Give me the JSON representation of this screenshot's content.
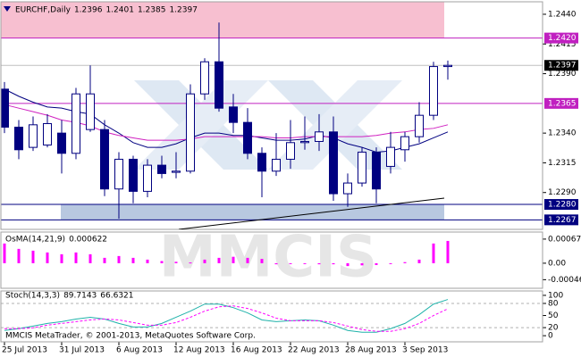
{
  "chart_data": [
    {
      "type": "candlestick",
      "title": "EURCHF,Daily",
      "header_values": [
        1.2396,
        1.2401,
        1.2385,
        1.2397
      ],
      "categories": [
        "25 Jul 2013",
        null,
        null,
        null,
        "31 Jul 2013",
        null,
        null,
        null,
        "6 Aug 2013",
        null,
        null,
        null,
        "12 Aug 2013",
        null,
        null,
        null,
        "16 Aug 2013",
        null,
        null,
        null,
        "22 Aug 2013",
        null,
        null,
        null,
        "28 Aug 2013",
        null,
        null,
        null,
        "3 Sep 2013",
        null,
        null,
        null
      ],
      "open": [
        1.2377,
        1.2345,
        1.2328,
        1.233,
        1.234,
        1.2323,
        1.2343,
        1.2343,
        1.2293,
        1.2318,
        1.2291,
        1.2313,
        1.2307,
        1.2308,
        1.2373,
        1.24,
        1.2362,
        1.2349,
        1.2323,
        1.2308,
        1.2318,
        1.2332,
        1.2333,
        1.2341,
        1.2289,
        1.2298,
        1.2324,
        1.2312,
        1.2326,
        1.2337,
        1.2355,
        1.2396
      ],
      "high": [
        1.2383,
        1.2351,
        1.2354,
        1.2356,
        1.2351,
        1.2378,
        1.2397,
        1.2351,
        1.2324,
        1.2321,
        1.2318,
        1.2321,
        1.2324,
        1.2381,
        1.2403,
        1.2433,
        1.2373,
        1.2361,
        1.2328,
        1.234,
        1.2351,
        1.2354,
        1.2356,
        1.2354,
        1.2306,
        1.2328,
        1.2328,
        1.2341,
        1.2341,
        1.2366,
        1.24,
        1.2401
      ],
      "low": [
        1.234,
        1.2318,
        1.2325,
        1.2328,
        1.2306,
        1.2318,
        1.2341,
        1.2287,
        1.2268,
        1.2281,
        1.2286,
        1.2302,
        1.2302,
        1.2306,
        1.2368,
        1.2358,
        1.234,
        1.2318,
        1.2286,
        1.2304,
        1.231,
        1.2326,
        1.2325,
        1.2283,
        1.2278,
        1.2295,
        1.2281,
        1.2306,
        1.2316,
        1.2332,
        1.2351,
        1.2385
      ],
      "close": [
        1.2345,
        1.2326,
        1.2347,
        1.2348,
        1.2323,
        1.2373,
        1.2373,
        1.2293,
        1.2318,
        1.2291,
        1.2313,
        1.2306,
        1.2308,
        1.2373,
        1.24,
        1.2361,
        1.2349,
        1.2323,
        1.2308,
        1.2318,
        1.2332,
        1.2333,
        1.2341,
        1.2289,
        1.2298,
        1.2324,
        1.2293,
        1.2328,
        1.2337,
        1.2355,
        1.2396,
        1.2397
      ],
      "up_color": "#ffffff",
      "down_color": "#000080",
      "wick_color": "#000080",
      "lines": [
        {
          "color": "#000080",
          "values": [
            1.2377,
            1.2371,
            1.2366,
            1.2362,
            1.2361,
            1.2358,
            1.2356,
            1.2347,
            1.234,
            1.2332,
            1.2328,
            1.2328,
            1.2331,
            1.2336,
            1.234,
            1.234,
            1.2338,
            1.2338,
            1.2336,
            1.2334,
            1.2334,
            1.2335,
            1.2338,
            1.2336,
            1.2331,
            1.2328,
            1.2324,
            1.2325,
            1.2328,
            1.2331,
            1.2336,
            1.2341
          ]
        },
        {
          "color": "#d020c0",
          "values": [
            1.2364,
            1.2361,
            1.2358,
            1.2355,
            1.2351,
            1.2349,
            1.2346,
            1.2341,
            1.2338,
            1.2336,
            1.2334,
            1.2334,
            1.2334,
            1.2335,
            1.2337,
            1.2337,
            1.2337,
            1.2337,
            1.2337,
            1.2336,
            1.2336,
            1.2337,
            1.2337,
            1.2337,
            1.2337,
            1.2337,
            1.2338,
            1.234,
            1.2341,
            1.2343,
            1.2344,
            1.2347
          ]
        }
      ],
      "levels": [
        {
          "value": 1.242,
          "label": "1.2420",
          "color": "#c020c0"
        },
        {
          "value": 1.2365,
          "label": "1.2365",
          "color": "#c020c0"
        },
        {
          "value": 1.228,
          "label": "1.2280",
          "color": "#000080"
        },
        {
          "value": 1.2267,
          "label": "1.2267",
          "color": "#000080"
        }
      ],
      "current": 1.2397,
      "ylim": [
        1.2259,
        1.24505
      ],
      "yticks": [
        {
          "value": 1.244,
          "label": "1.2440"
        },
        1.2415,
        {
          "value": 1.239,
          "label": "1.2390"
        },
        {
          "value": 1.234,
          "label": "1.2340"
        },
        1.2315,
        {
          "value": 1.229,
          "label": "1.2290"
        }
      ]
    },
    {
      "type": "bar",
      "title": "OsMA(14,21,9)",
      "header_values": [
        0.000622
      ],
      "color": "#ff00ff",
      "values": [
        0.00055,
        0.0004,
        0.00035,
        0.0003,
        0.00025,
        0.0003,
        0.00025,
        0.00015,
        0.0002,
        0.00015,
        0.0001,
        6e-05,
        4e-05,
        2e-05,
        0.0001,
        0.00015,
        0.00018,
        0.00015,
        0.00012,
        -3e-05,
        -2e-05,
        -2e-05,
        -3e-05,
        -3e-05,
        -8e-05,
        -6e-05,
        -5e-05,
        -2e-05,
        3e-05,
        0.0001,
        0.00055,
        0.000622
      ],
      "ylim": [
        -0.0007,
        0.00087
      ],
      "yticks": [
        0.000673,
        {
          "value": 0,
          "label": "0.00"
        },
        -0.00046
      ]
    },
    {
      "type": "line",
      "title": "Stoch(14,3,3)",
      "header_values": [
        89.7143,
        66.6321
      ],
      "series": [
        {
          "color": "#20b2aa",
          "dash": false,
          "values": [
            13.0,
            17.4,
            23.9,
            30.4,
            34.8,
            41.3,
            45.7,
            41.3,
            30.4,
            21.7,
            21.7,
            30.4,
            45.7,
            60.9,
            78.3,
            78.3,
            69.6,
            56.5,
            39.1,
            34.8,
            37.0,
            39.1,
            37.0,
            26.1,
            13.0,
            8.7,
            8.7,
            17.4,
            30.4,
            52.2,
            78.3,
            89.7143
          ]
        },
        {
          "color": "#ff00ff",
          "dash": true,
          "values": [
            17.4,
            17.4,
            19.6,
            26.1,
            30.4,
            34.8,
            39.1,
            41.3,
            39.1,
            32.6,
            26.1,
            26.1,
            32.6,
            45.7,
            60.9,
            71.7,
            73.9,
            67.4,
            56.5,
            43.5,
            37.0,
            37.0,
            37.0,
            32.6,
            23.9,
            15.2,
            10.9,
            10.9,
            17.4,
            30.4,
            50.0,
            66.6321
          ]
        }
      ],
      "levels": [
        80,
        20
      ],
      "ylim": [
        -15.2,
        110.9
      ],
      "yticks": [
        100,
        80,
        50,
        20,
        0
      ]
    }
  ],
  "watermark": "MMCIS",
  "footer": "MMCIS MetaTrader, © 2001-2013, MetaQuotes Software Corp."
}
